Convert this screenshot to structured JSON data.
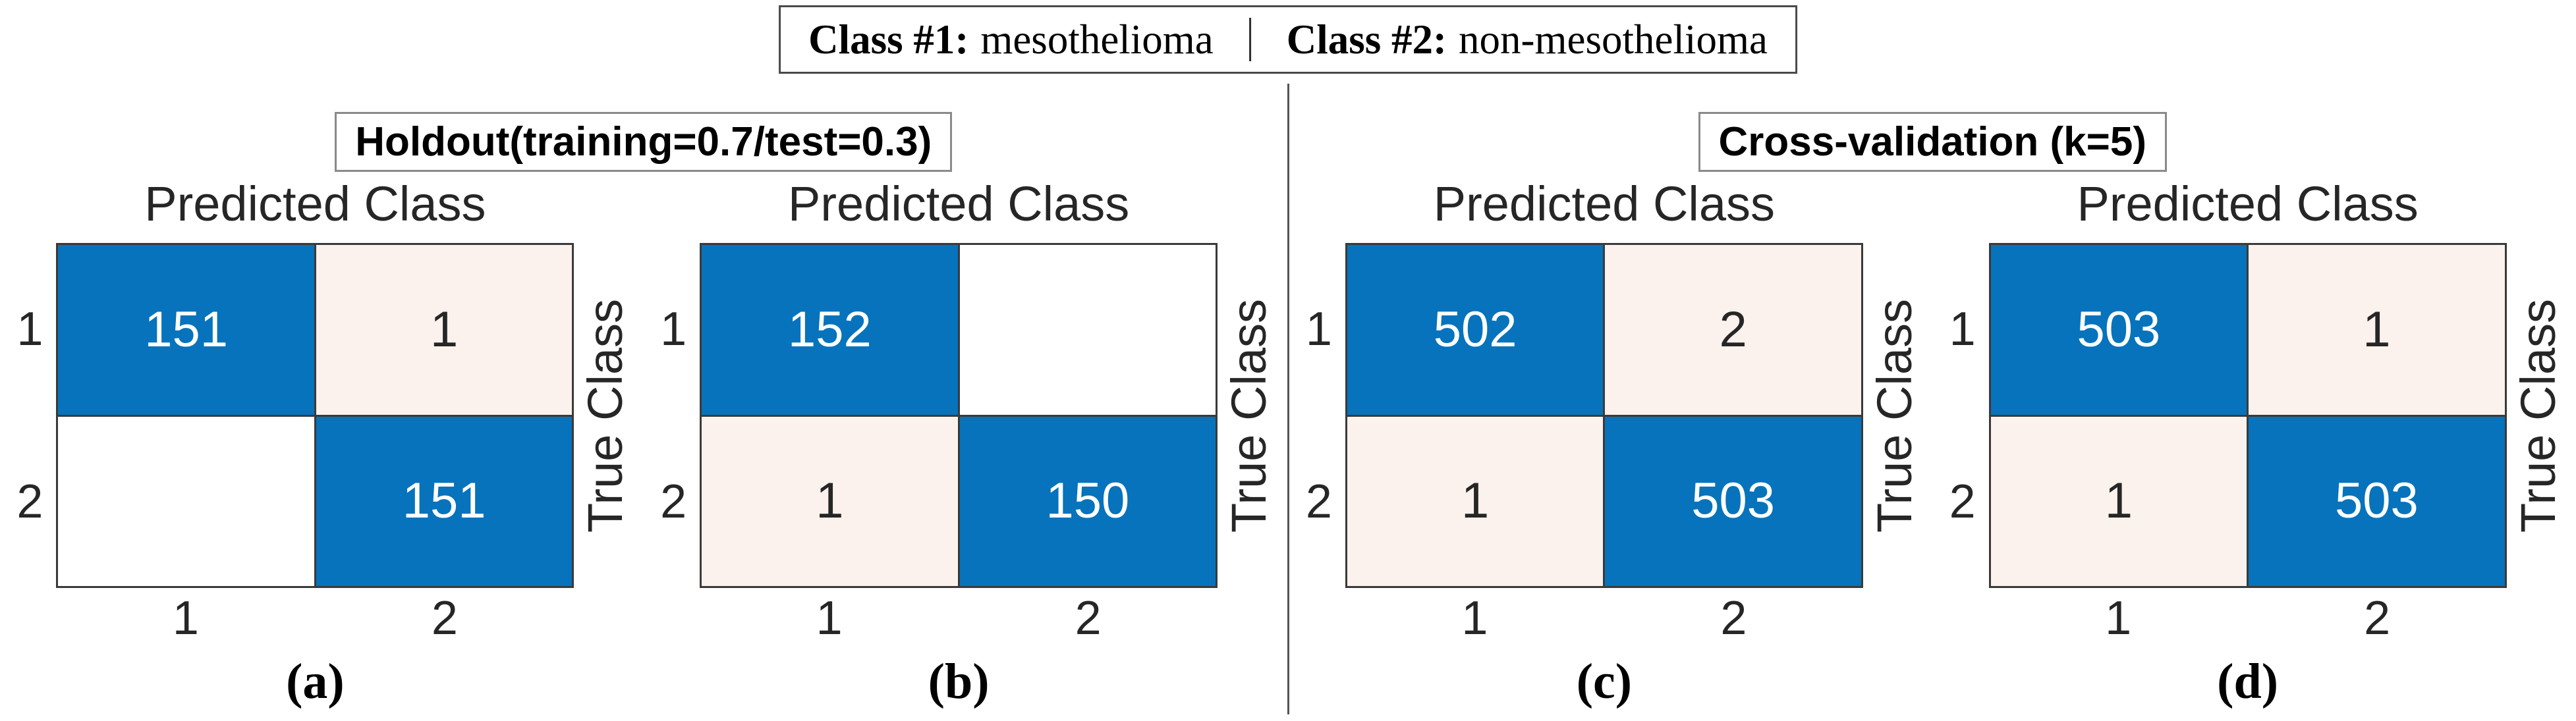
{
  "figure": {
    "legend": {
      "items": [
        {
          "label": "Class #1:",
          "value": "mesothelioma"
        },
        {
          "label": "Class #2:",
          "value": "non-mesothelioma"
        }
      ],
      "separator": "|"
    },
    "sections": [
      {
        "title": "Holdout(training=0.7/test=0.3)",
        "panels": [
          {
            "caption": "(a)",
            "x_axis_label": "Predicted Class",
            "y_axis_label": "True Class",
            "row_labels": [
              "1",
              "2"
            ],
            "col_labels": [
              "1",
              "2"
            ],
            "cells": [
              [
                {
                  "value": "151",
                  "type": "diag"
                },
                {
                  "value": "1",
                  "type": "off"
                }
              ],
              [
                {
                  "value": "",
                  "type": "zero"
                },
                {
                  "value": "151",
                  "type": "diag"
                }
              ]
            ]
          },
          {
            "caption": "(b)",
            "x_axis_label": "Predicted Class",
            "y_axis_label": "True Class",
            "row_labels": [
              "1",
              "2"
            ],
            "col_labels": [
              "1",
              "2"
            ],
            "cells": [
              [
                {
                  "value": "152",
                  "type": "diag"
                },
                {
                  "value": "",
                  "type": "zero"
                }
              ],
              [
                {
                  "value": "1",
                  "type": "off"
                },
                {
                  "value": "150",
                  "type": "diag"
                }
              ]
            ]
          }
        ]
      },
      {
        "title": "Cross-validation (k=5)",
        "panels": [
          {
            "caption": "(c)",
            "x_axis_label": "Predicted Class",
            "y_axis_label": "True Class",
            "row_labels": [
              "1",
              "2"
            ],
            "col_labels": [
              "1",
              "2"
            ],
            "cells": [
              [
                {
                  "value": "502",
                  "type": "diag"
                },
                {
                  "value": "2",
                  "type": "off"
                }
              ],
              [
                {
                  "value": "1",
                  "type": "off"
                },
                {
                  "value": "503",
                  "type": "diag"
                }
              ]
            ]
          },
          {
            "caption": "(d)",
            "x_axis_label": "Predicted Class",
            "y_axis_label": "True Class",
            "row_labels": [
              "1",
              "2"
            ],
            "col_labels": [
              "1",
              "2"
            ],
            "cells": [
              [
                {
                  "value": "503",
                  "type": "diag"
                },
                {
                  "value": "1",
                  "type": "off"
                }
              ],
              [
                {
                  "value": "1",
                  "type": "off"
                },
                {
                  "value": "503",
                  "type": "diag"
                }
              ]
            ]
          }
        ]
      }
    ]
  },
  "colors": {
    "cell_diagonal": "#0673BC",
    "cell_off_diagonal": "#FCF2ED",
    "cell_zero": "#FFFFFF",
    "cell_text_on_diagonal": "#FFFFFF",
    "text_dark": "#262626",
    "grid_line": "#3A3A3A",
    "box_border_dark": "#4A4A4A",
    "box_border_gray": "#8A8A8A",
    "divider": "#555555",
    "background": "#FFFFFF"
  },
  "chart_data": [
    {
      "type": "heatmap",
      "title": "Holdout(training=0.7/test=0.3) - (a)",
      "xlabel": "Predicted Class",
      "ylabel": "True Class",
      "x": [
        "1",
        "2"
      ],
      "y": [
        "1",
        "2"
      ],
      "values": [
        [
          151,
          1
        ],
        [
          0,
          151
        ]
      ],
      "legend_position": "none",
      "grid": true
    },
    {
      "type": "heatmap",
      "title": "Holdout(training=0.7/test=0.3) - (b)",
      "xlabel": "Predicted Class",
      "ylabel": "True Class",
      "x": [
        "1",
        "2"
      ],
      "y": [
        "1",
        "2"
      ],
      "values": [
        [
          152,
          0
        ],
        [
          1,
          150
        ]
      ],
      "legend_position": "none",
      "grid": true
    },
    {
      "type": "heatmap",
      "title": "Cross-validation (k=5) - (c)",
      "xlabel": "Predicted Class",
      "ylabel": "True Class",
      "x": [
        "1",
        "2"
      ],
      "y": [
        "1",
        "2"
      ],
      "values": [
        [
          502,
          2
        ],
        [
          1,
          503
        ]
      ],
      "legend_position": "none",
      "grid": true
    },
    {
      "type": "heatmap",
      "title": "Cross-validation (k=5) - (d)",
      "xlabel": "Predicted Class",
      "ylabel": "True Class",
      "x": [
        "1",
        "2"
      ],
      "y": [
        "1",
        "2"
      ],
      "values": [
        [
          503,
          1
        ],
        [
          1,
          503
        ]
      ],
      "legend_position": "none",
      "grid": true
    }
  ]
}
